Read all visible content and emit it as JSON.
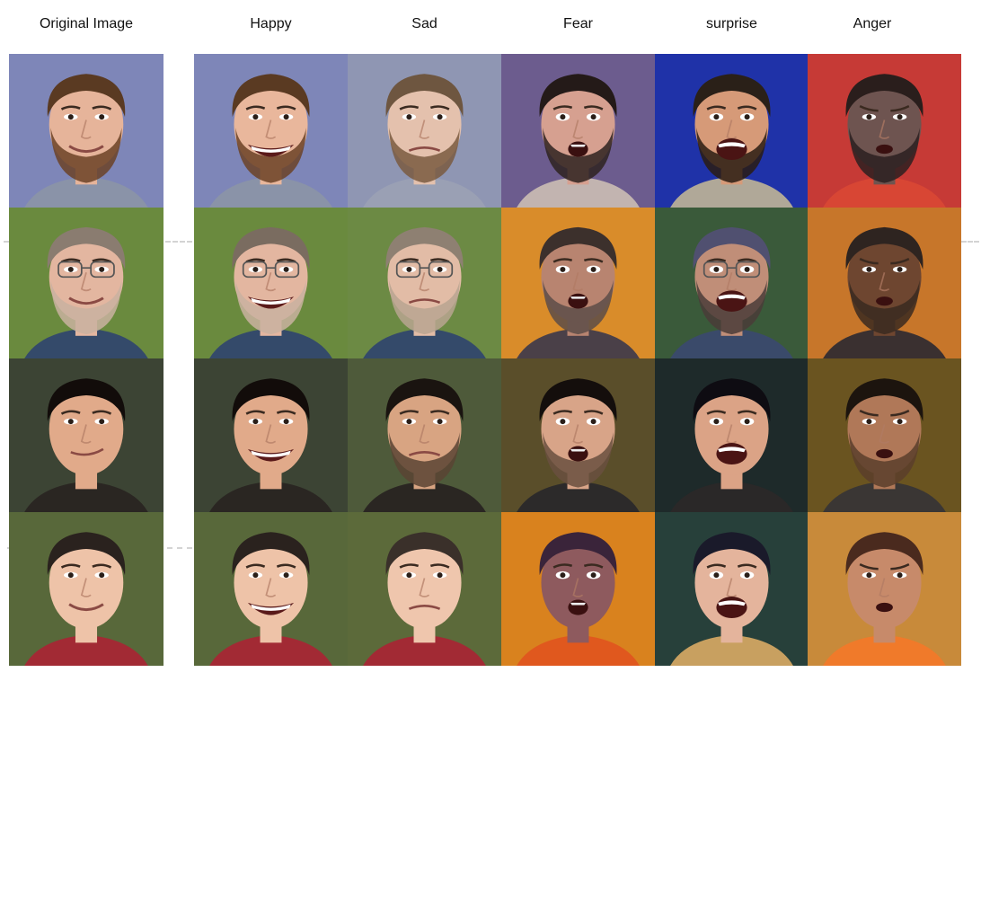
{
  "columns": [
    {
      "label": "Original Image"
    },
    {
      "label": "Happy"
    },
    {
      "label": "Sad"
    },
    {
      "label": "Fear"
    },
    {
      "label": "surprise"
    },
    {
      "label": "Anger"
    }
  ],
  "rows": [
    {
      "subject": "man-beard",
      "cells": [
        {
          "expression": "neutral-smile",
          "bg": "#7e86b8",
          "skin": "#e6b49a",
          "hair": "#5a3a22",
          "beard": "#6b4226",
          "shirt": "#8a93a8"
        },
        {
          "expression": "happy",
          "bg": "#7e86b8",
          "skin": "#e9b79c",
          "hair": "#5a3a22",
          "beard": "#6b4226",
          "shirt": "#8a93a8"
        },
        {
          "expression": "sad",
          "bg": "#8f96b3",
          "skin": "#e4c1ad",
          "hair": "#6e5640",
          "beard": "#7a5a40",
          "shirt": "#9aa0b4"
        },
        {
          "expression": "fear",
          "bg": "#6c5c8e",
          "skin": "#d6a090",
          "hair": "#241a18",
          "beard": "#2e2220",
          "shirt": "#c2b4b0"
        },
        {
          "expression": "surprise",
          "bg": "#1f32a8",
          "skin": "#d69a78",
          "hair": "#2a2018",
          "beard": "#2a1c12",
          "shirt": "#b0a898"
        },
        {
          "expression": "anger",
          "bg": "#c63a36",
          "skin": "#6e5450",
          "hair": "#2a1e1c",
          "beard": "#2c2020",
          "shirt": "#d84634"
        }
      ]
    },
    {
      "subject": "man-glasses",
      "cells": [
        {
          "expression": "smile",
          "bg": "#6a8a3e",
          "skin": "#e3b6a0",
          "hair": "#8a7c70",
          "beard": "#c9b2a0",
          "shirt": "#344a6a",
          "glasses": true
        },
        {
          "expression": "happy",
          "bg": "#6a8a3e",
          "skin": "#e3b6a0",
          "hair": "#7a6c60",
          "beard": "#c9b2a0",
          "shirt": "#344a6a",
          "glasses": true
        },
        {
          "expression": "sad",
          "bg": "#6c8a44",
          "skin": "#e2bca6",
          "hair": "#8e8072",
          "beard": "#b8a490",
          "shirt": "#344a6a",
          "glasses": true
        },
        {
          "expression": "fear",
          "bg": "#d98c2a",
          "skin": "#b88470",
          "hair": "#3c302c",
          "beard": "#5c4c48",
          "shirt": "#4a4048"
        },
        {
          "expression": "surprise",
          "bg": "#3a5a3a",
          "skin": "#c08e78",
          "hair": "#505070",
          "beard": "#4a3c38",
          "shirt": "#3a4a6a",
          "glasses": true
        },
        {
          "expression": "anger",
          "bg": "#c7762a",
          "skin": "#6e4630",
          "hair": "#2e2420",
          "beard": "#3a2a20",
          "shirt": "#3a3030"
        }
      ]
    },
    {
      "subject": "young-man",
      "cells": [
        {
          "expression": "smirk",
          "bg": "#3c4434",
          "skin": "#e1aa8a",
          "hair": "#120c0a",
          "beard": null,
          "shirt": "#2a2622"
        },
        {
          "expression": "happy",
          "bg": "#3c4434",
          "skin": "#e1aa8a",
          "hair": "#120c0a",
          "beard": null,
          "shirt": "#2a2622"
        },
        {
          "expression": "sad",
          "bg": "#4e5a3a",
          "skin": "#d8a482",
          "hair": "#1a1410",
          "beard": "#5a4434",
          "shirt": "#2a2622"
        },
        {
          "expression": "fear",
          "bg": "#5a4e2a",
          "skin": "#d8a488",
          "hair": "#140e0c",
          "beard": "#6a5040",
          "shirt": "#2c2a2a"
        },
        {
          "expression": "surprise",
          "bg": "#1e2a2a",
          "skin": "#dba386",
          "hair": "#0e0c12",
          "beard": null,
          "shirt": "#2a2828"
        },
        {
          "expression": "anger",
          "bg": "#6a5420",
          "skin": "#b07858",
          "hair": "#1c140e",
          "beard": "#5a3e2c",
          "shirt": "#3a3634"
        }
      ]
    },
    {
      "subject": "boy",
      "cells": [
        {
          "expression": "smile",
          "bg": "#58683a",
          "skin": "#eec3a8",
          "hair": "#2a221e",
          "beard": null,
          "shirt": "#a22a34"
        },
        {
          "expression": "happy",
          "bg": "#58683a",
          "skin": "#eec3a8",
          "hair": "#2a221e",
          "beard": null,
          "shirt": "#a22a34"
        },
        {
          "expression": "sad",
          "bg": "#5c6a3a",
          "skin": "#efc6ad",
          "hair": "#3a302a",
          "beard": null,
          "shirt": "#a22a34"
        },
        {
          "expression": "fear",
          "bg": "#d9821e",
          "skin": "#8e5a5e",
          "hair": "#3a243a",
          "beard": null,
          "shirt": "#e0581e"
        },
        {
          "expression": "surprise",
          "bg": "#27403a",
          "skin": "#e4b49c",
          "hair": "#1a1a2a",
          "beard": null,
          "shirt": "#c8a060"
        },
        {
          "expression": "anger",
          "bg": "#c88a3a",
          "skin": "#c78a6a",
          "hair": "#4a2a1e",
          "beard": null,
          "shirt": "#f07a2a"
        }
      ]
    }
  ]
}
